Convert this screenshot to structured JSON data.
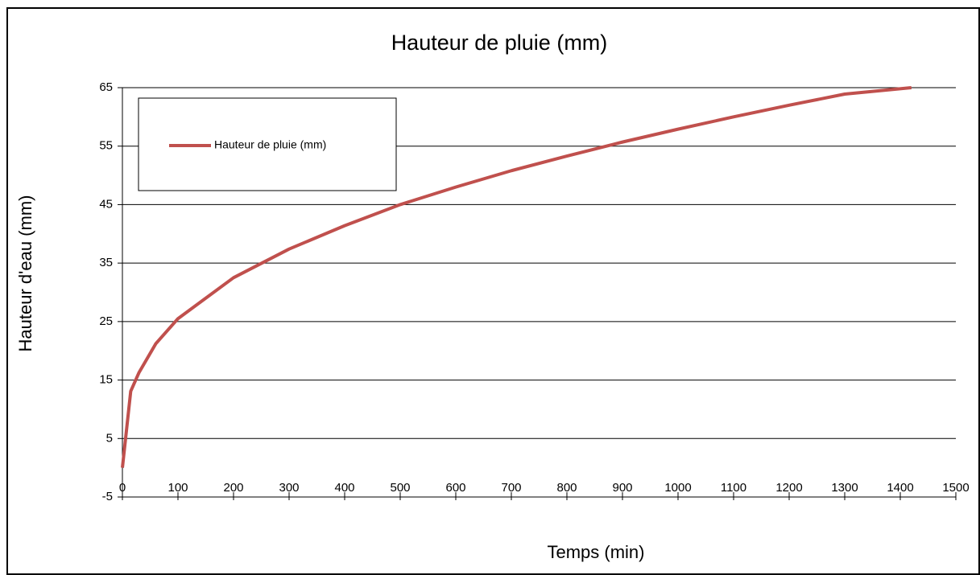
{
  "chart_data": {
    "type": "line",
    "title": "Hauteur de pluie (mm)",
    "x_label": "Temps (min)",
    "y_label": "Hauteur d'eau (mm)",
    "x": [
      0,
      15,
      30,
      60,
      100,
      200,
      300,
      400,
      500,
      600,
      700,
      800,
      900,
      1000,
      1100,
      1200,
      1300,
      1420
    ],
    "series": [
      {
        "name": "Hauteur de pluie (mm)",
        "color": "#c0504d",
        "values": [
          0,
          13.1,
          16.3,
          21.2,
          25.5,
          32.5,
          37.4,
          41.4,
          45.0,
          48.0,
          50.8,
          53.3,
          55.7,
          57.9,
          60.0,
          62.0,
          63.9,
          65
        ]
      }
    ],
    "xlim": [
      0,
      1500
    ],
    "ylim": [
      -5,
      65
    ],
    "xticks": [
      0,
      100,
      200,
      300,
      400,
      500,
      600,
      700,
      800,
      900,
      1000,
      1100,
      1200,
      1300,
      1400,
      1500
    ],
    "yticks": [
      -5,
      5,
      15,
      25,
      35,
      45,
      55,
      65
    ],
    "grid": true,
    "legend": "upper left"
  }
}
